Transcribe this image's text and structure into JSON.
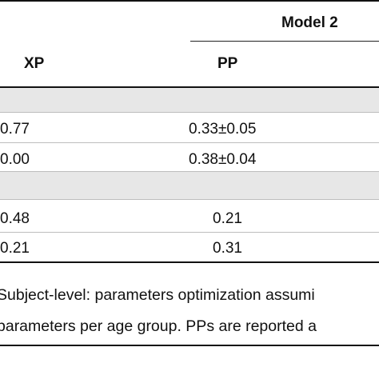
{
  "table": {
    "group_header": "Model 2",
    "columns": [
      "XP",
      "PP"
    ],
    "rows": [
      {
        "type": "section",
        "xp": "",
        "pp": ""
      },
      {
        "type": "data",
        "xp": "0.77",
        "pp": "0.33±0.05"
      },
      {
        "type": "data",
        "xp": "0.00",
        "pp": "0.38±0.04"
      },
      {
        "type": "section",
        "xp": "",
        "pp": ""
      },
      {
        "type": "data",
        "xp": "0.48",
        "pp": "0.21"
      },
      {
        "type": "data",
        "xp": "0.21",
        "pp": "0.31"
      }
    ]
  },
  "caption": {
    "line1": "Subject-level: parameters optimization assumi",
    "line2": "parameters per age group. PPs are reported a"
  }
}
